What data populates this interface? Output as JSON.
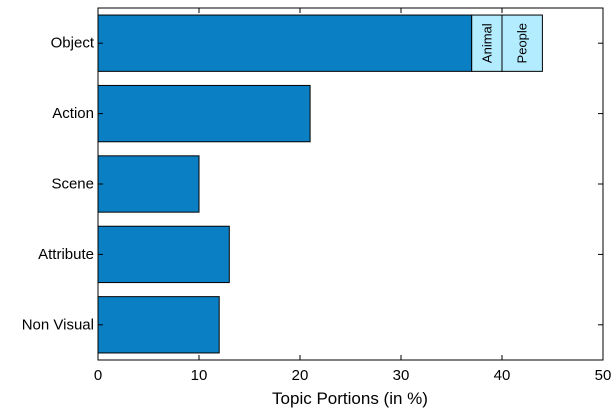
{
  "chart_data": {
    "type": "bar",
    "orientation": "horizontal",
    "categories": [
      "Object",
      "Action",
      "Scene",
      "Attribute",
      "Non Visual"
    ],
    "values": [
      37,
      21,
      10,
      13,
      12
    ],
    "stacked_segments": [
      {
        "category": "Object",
        "label": "Animal",
        "start": 37,
        "end": 40
      },
      {
        "category": "Object",
        "label": "People",
        "start": 40,
        "end": 44
      }
    ],
    "title": "",
    "xlabel": "Topic Portions (in %)",
    "ylabel": "",
    "xlim": [
      0,
      50
    ],
    "xticks": [
      "0",
      "10",
      "20",
      "30",
      "40",
      "50"
    ],
    "grid": false,
    "legend": "none",
    "colors": {
      "bar": "#0a7fc4",
      "segment": "#b3ecff",
      "axis": "#000000"
    }
  }
}
